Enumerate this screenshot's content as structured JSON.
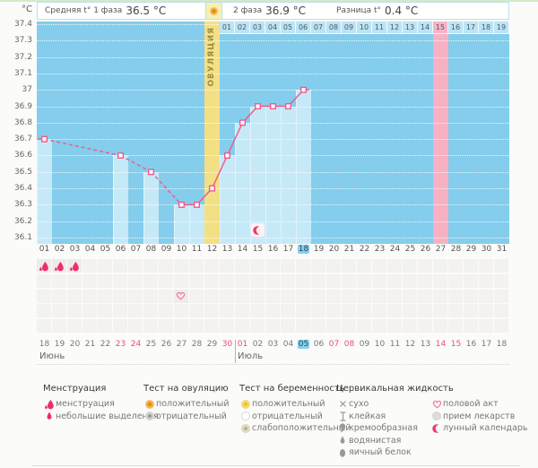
{
  "header": {
    "y_unit": "°C",
    "avg_phase1_label": "Средняя t° 1 фаза",
    "avg_phase1_value": "36.5 °C",
    "phase2_label": "2 фаза",
    "phase2_value": "36.9 °C",
    "diff_label": "Разница t°",
    "diff_value": "0.4 °C"
  },
  "chart_data": {
    "type": "line",
    "ylabel": "°C",
    "ylim": [
      36.1,
      37.4
    ],
    "yticks": [
      "37.4",
      "37.3",
      "37.2",
      "37.1",
      "37",
      "36.9",
      "36.8",
      "36.7",
      "36.6",
      "36.5",
      "36.4",
      "36.3",
      "36.2",
      "36.1"
    ],
    "grid": "dotted-horizontal",
    "cycle_length_shown": 31,
    "series": [
      {
        "name": "basal-temperature",
        "points": [
          {
            "day": 1,
            "temp": 36.7
          },
          {
            "day": 6,
            "temp": 36.6
          },
          {
            "day": 8,
            "temp": 36.5
          },
          {
            "day": 10,
            "temp": 36.3
          },
          {
            "day": 11,
            "temp": 36.3
          },
          {
            "day": 12,
            "temp": 36.4
          },
          {
            "day": 13,
            "temp": 36.6
          },
          {
            "day": 14,
            "temp": 36.8
          },
          {
            "day": 15,
            "temp": 36.9
          },
          {
            "day": 16,
            "temp": 36.9
          },
          {
            "day": 17,
            "temp": 36.9
          },
          {
            "day": 18,
            "temp": 37.0
          }
        ],
        "dashed_when_days_skipped": true,
        "line_color": "#ee5c8d"
      }
    ],
    "ovulation": {
      "day": 12,
      "label": "ОВУЛЯЦИЯ",
      "band_color": "#f3e085"
    },
    "dpo_row": {
      "start_cycle_day": 13,
      "labels": [
        "01",
        "02",
        "03",
        "04",
        "05",
        "06",
        "07",
        "08",
        "09",
        "10",
        "11",
        "12",
        "13",
        "14",
        "15",
        "16",
        "17",
        "18",
        "19"
      ],
      "highlighted_label": "15"
    },
    "expected_period": {
      "cycle_day": 27,
      "band_color": "#f7b1c3"
    },
    "today_cycle_day": 18,
    "lunar_marker": {
      "cycle_day": 15,
      "icon": "crescent-moon-icon"
    },
    "cycle_day_labels": [
      "01",
      "02",
      "03",
      "04",
      "05",
      "06",
      "07",
      "08",
      "09",
      "10",
      "11",
      "12",
      "13",
      "14",
      "15",
      "16",
      "17",
      "18",
      "19",
      "20",
      "21",
      "22",
      "23",
      "24",
      "25",
      "26",
      "27",
      "28",
      "29",
      "30",
      "31"
    ]
  },
  "icon_rows": [
    {
      "name": "menstruation",
      "icons": [
        {
          "day": 1,
          "icon": "menstruation-drop-icon"
        },
        {
          "day": 2,
          "icon": "menstruation-drop-icon"
        },
        {
          "day": 3,
          "icon": "menstruation-drop-icon"
        }
      ]
    },
    {
      "name": "row-2",
      "icons": []
    },
    {
      "name": "intercourse",
      "icons": [
        {
          "day": 10,
          "icon": "heart-outline-icon"
        }
      ]
    },
    {
      "name": "row-4",
      "icons": []
    },
    {
      "name": "row-5",
      "icons": []
    }
  ],
  "calendar": {
    "months": [
      {
        "name": "Июнь",
        "dates": [
          {
            "d": "18"
          },
          {
            "d": "19"
          },
          {
            "d": "20"
          },
          {
            "d": "21"
          },
          {
            "d": "22"
          },
          {
            "d": "23",
            "weekend": true
          },
          {
            "d": "24",
            "weekend": true
          },
          {
            "d": "25"
          },
          {
            "d": "26"
          },
          {
            "d": "27"
          },
          {
            "d": "28"
          },
          {
            "d": "29"
          },
          {
            "d": "30",
            "weekend": true
          }
        ]
      },
      {
        "name": "Июль",
        "dates": [
          {
            "d": "01",
            "weekend": true
          },
          {
            "d": "02"
          },
          {
            "d": "03"
          },
          {
            "d": "04"
          },
          {
            "d": "05",
            "today": true
          },
          {
            "d": "06"
          },
          {
            "d": "07",
            "weekend": true
          },
          {
            "d": "08",
            "weekend": true
          },
          {
            "d": "09"
          },
          {
            "d": "10"
          },
          {
            "d": "11"
          },
          {
            "d": "12"
          },
          {
            "d": "13"
          },
          {
            "d": "14",
            "weekend": true
          },
          {
            "d": "15",
            "weekend": true
          },
          {
            "d": "16"
          },
          {
            "d": "17"
          },
          {
            "d": "18"
          }
        ]
      }
    ]
  },
  "legend": {
    "columns": [
      {
        "title": "Менструация",
        "items": [
          {
            "icon": "drop-large-icon",
            "label": "менструация"
          },
          {
            "icon": "drop-small-icon",
            "label": "небольшие выделения"
          }
        ]
      },
      {
        "title": "Тест на овуляцию",
        "items": [
          {
            "icon": "circle-positive-orange-icon",
            "label": "положительный"
          },
          {
            "icon": "circle-negative-gray-icon",
            "label": "отрицательный"
          }
        ]
      },
      {
        "title": "Тест на беременность",
        "items": [
          {
            "icon": "circle-positive-yellow-icon",
            "label": "положительный"
          },
          {
            "icon": "circle-outline-icon",
            "label": "отрицательный"
          },
          {
            "icon": "circle-weak-positive-icon",
            "label": "слабоположительный"
          }
        ]
      },
      {
        "title": "Цервикальная жидкость",
        "items": [
          {
            "icon": "x-mark-icon",
            "label": "сухо"
          },
          {
            "icon": "sticky-icon",
            "label": "клейкая"
          },
          {
            "icon": "comma-icon",
            "label": "кремообразная"
          },
          {
            "icon": "drop-tiny-icon",
            "label": "водянистая"
          },
          {
            "icon": "egg-white-icon",
            "label": "яичный белок"
          }
        ]
      },
      {
        "title": "",
        "items": [
          {
            "icon": "heart-outline-icon",
            "label": "половой акт"
          },
          {
            "icon": "pill-circle-icon",
            "label": "прием лекарств"
          },
          {
            "icon": "crescent-moon-icon",
            "label": "лунный календарь"
          }
        ]
      }
    ]
  },
  "colors": {
    "plot_bg": "#84cdec",
    "measured_fill": "#c6e9f8",
    "ovulation_band": "#f3e085",
    "period_band": "#f7b1c3",
    "temp_line": "#ee5c8d",
    "today_highlight": "#84d0f0",
    "weekend_red": "#ee4d72",
    "menstruation_red": "#ee2e66"
  }
}
